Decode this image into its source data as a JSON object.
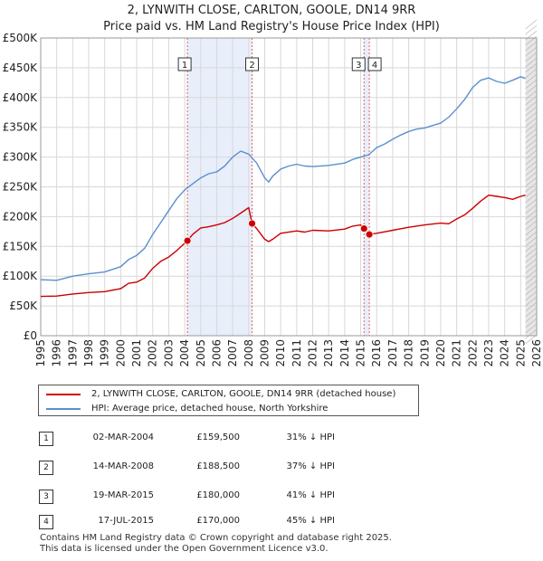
{
  "chart_data": {
    "type": "line",
    "title": "2, LYNWITH CLOSE, CARLTON, GOOLE, DN14 9RR",
    "subtitle": "Price paid vs. HM Land Registry's House Price Index (HPI)",
    "xlim": [
      1995,
      2026
    ],
    "ylim": [
      0,
      500000
    ],
    "x_ticks": [
      1995,
      1996,
      1997,
      1998,
      1999,
      2000,
      2001,
      2002,
      2003,
      2004,
      2005,
      2006,
      2007,
      2008,
      2009,
      2010,
      2011,
      2012,
      2013,
      2014,
      2015,
      2016,
      2017,
      2018,
      2019,
      2020,
      2021,
      2022,
      2023,
      2024,
      2025,
      2026
    ],
    "x_tick_labels": [
      "1995",
      "1996",
      "1997",
      "1998",
      "1999",
      "2000",
      "2001",
      "2002",
      "2003",
      "2004",
      "2005",
      "2006",
      "2007",
      "2008",
      "2009",
      "2010",
      "2011",
      "2012",
      "2013",
      "2014",
      "2015",
      "2016",
      "2017",
      "2018",
      "2019",
      "2020",
      "2021",
      "2022",
      "2023",
      "2024",
      "2025",
      "2026"
    ],
    "y_ticks": [
      0,
      50000,
      100000,
      150000,
      200000,
      250000,
      300000,
      350000,
      400000,
      450000,
      500000
    ],
    "y_tick_labels": [
      "£0",
      "£50K",
      "£100K",
      "£150K",
      "£200K",
      "£250K",
      "£300K",
      "£350K",
      "£400K",
      "£450K",
      "£500K"
    ],
    "series": [
      {
        "name": "2, LYNWITH CLOSE, CARLTON, GOOLE, DN14 9RR (detached house)",
        "color": "#cc0000",
        "x": [
          1995.0,
          1996.0,
          1997.0,
          1998.0,
          1999.0,
          2000.0,
          2000.5,
          2001.0,
          2001.5,
          2002.0,
          2002.5,
          2003.0,
          2003.5,
          2004.17,
          2004.5,
          2005.0,
          2005.5,
          2006.0,
          2006.5,
          2007.0,
          2007.5,
          2008.0,
          2008.21,
          2008.5,
          2009.0,
          2009.25,
          2009.5,
          2010.0,
          2011.0,
          2011.5,
          2012.0,
          2013.0,
          2014.0,
          2014.5,
          2015.0,
          2015.21,
          2015.54,
          2016.0,
          2017.0,
          2018.0,
          2019.0,
          2020.0,
          2020.5,
          2021.0,
          2021.5,
          2022.0,
          2022.5,
          2023.0,
          2023.5,
          2024.0,
          2024.5,
          2025.0,
          2025.3
        ],
        "y": [
          66000,
          66500,
          70000,
          72500,
          74000,
          79000,
          88000,
          90000,
          97000,
          113000,
          125000,
          132000,
          143000,
          159500,
          170000,
          181000,
          183000,
          186000,
          190000,
          197000,
          206000,
          215000,
          188500,
          180000,
          162000,
          158000,
          162000,
          172000,
          176000,
          174000,
          177000,
          176000,
          179000,
          184000,
          186000,
          180000,
          170000,
          172000,
          177000,
          182000,
          186000,
          189000,
          188000,
          196000,
          203000,
          214000,
          226000,
          236000,
          234000,
          232000,
          229000,
          234000,
          236000
        ]
      },
      {
        "name": "HPI: Average price, detached house, North Yorkshire",
        "color": "#5b8fd0",
        "x": [
          1995.0,
          1996.0,
          1997.0,
          1998.0,
          1999.0,
          2000.0,
          2000.5,
          2001.0,
          2001.5,
          2002.0,
          2002.5,
          2003.0,
          2003.5,
          2004.0,
          2004.5,
          2005.0,
          2005.5,
          2006.0,
          2006.5,
          2007.0,
          2007.5,
          2008.0,
          2008.5,
          2009.0,
          2009.25,
          2009.5,
          2010.0,
          2010.5,
          2011.0,
          2011.5,
          2012.0,
          2013.0,
          2014.0,
          2014.5,
          2015.0,
          2015.5,
          2016.0,
          2016.5,
          2017.0,
          2017.5,
          2018.0,
          2018.5,
          2019.0,
          2019.5,
          2020.0,
          2020.5,
          2021.0,
          2021.5,
          2022.0,
          2022.5,
          2023.0,
          2023.5,
          2024.0,
          2024.5,
          2025.0,
          2025.3
        ],
        "y": [
          94000,
          93000,
          100000,
          104000,
          107000,
          116000,
          128000,
          135000,
          147000,
          170000,
          190000,
          210000,
          230000,
          245000,
          255000,
          265000,
          272000,
          275000,
          285000,
          300000,
          310000,
          305000,
          290000,
          265000,
          258000,
          268000,
          280000,
          285000,
          288000,
          285000,
          284000,
          286000,
          290000,
          296000,
          300000,
          304000,
          316000,
          322000,
          330000,
          337000,
          343000,
          347000,
          349000,
          353000,
          357000,
          367000,
          381000,
          397000,
          417000,
          429000,
          433000,
          427000,
          424000,
          429000,
          435000,
          432000
        ]
      }
    ],
    "sales": [
      {
        "label": "1",
        "x": 2004.17,
        "y": 159500
      },
      {
        "label": "2",
        "x": 2008.21,
        "y": 188500
      },
      {
        "label": "3",
        "x": 2015.21,
        "y": 180000
      },
      {
        "label": "4",
        "x": 2015.54,
        "y": 170000
      }
    ],
    "shaded_regions": [
      {
        "from": 2004.17,
        "to": 2008.21
      },
      {
        "from": 2015.21,
        "to": 2015.54
      },
      {
        "from": 2025.3,
        "to": 2026.0
      }
    ]
  },
  "legend": {
    "property_label": "2, LYNWITH CLOSE, CARLTON, GOOLE, DN14 9RR (detached house)",
    "hpi_label": "HPI: Average price, detached house, North Yorkshire",
    "property_color": "#cc0000",
    "hpi_color": "#5b8fd0"
  },
  "sales_table": [
    {
      "num": "1",
      "date": "02-MAR-2004",
      "price": "£159,500",
      "hpi": "31% ↓ HPI"
    },
    {
      "num": "2",
      "date": "14-MAR-2008",
      "price": "£188,500",
      "hpi": "37% ↓ HPI"
    },
    {
      "num": "3",
      "date": "19-MAR-2015",
      "price": "£180,000",
      "hpi": "41% ↓ HPI"
    },
    {
      "num": "4",
      "date": "17-JUL-2015",
      "price": "£170,000",
      "hpi": "45% ↓ HPI"
    }
  ],
  "footer": {
    "line1": "Contains HM Land Registry data © Crown copyright and database right 2025.",
    "line2": "This data is licensed under the Open Government Licence v3.0."
  }
}
